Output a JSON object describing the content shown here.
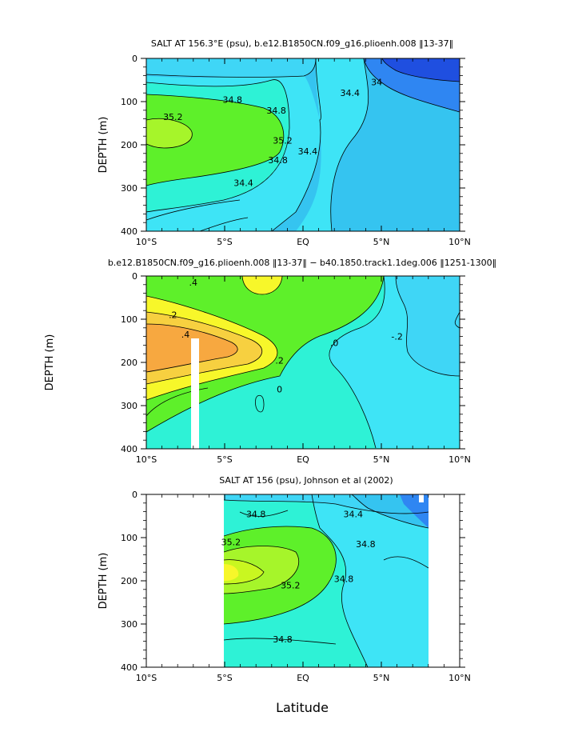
{
  "figure": {
    "xlabel": "Latitude",
    "x_ticks": [
      "10°S",
      "5°S",
      "EQ",
      "5°N",
      "10°N"
    ],
    "y_ticks": [
      "0",
      "100",
      "200",
      "300",
      "400"
    ]
  },
  "colors": {
    "blue_dark": "#1f4fe0",
    "blue_mid": "#2f86f2",
    "blue_light": "#35c4f0",
    "cyan": "#3ee4f6",
    "sky": "#3fd6f6",
    "aqua": "#2ef2d6",
    "green": "#5ef02a",
    "lime": "#a6f52a",
    "yellowgreen": "#c9f720",
    "yellow": "#f7f72a",
    "gold": "#f7d040",
    "orange": "#f7a840",
    "white": "#ffffff"
  },
  "chart_data": [
    {
      "type": "heatmap",
      "title": "SALT AT 156.3°E (psu), b.e12.B1850CN.f09_g16.plioenh.008 ‖13-37‖",
      "ylabel": "DEPTH (m)",
      "xlim": [
        -10,
        10
      ],
      "ylim": [
        400,
        0
      ],
      "contour_labels": [
        {
          "text": "34.8",
          "lat": -4.5,
          "depth": 95
        },
        {
          "text": "35.2",
          "lat": -8.3,
          "depth": 135
        },
        {
          "text": "35.2",
          "lat": -1.3,
          "depth": 190
        },
        {
          "text": "34.8",
          "lat": -1.6,
          "depth": 235
        },
        {
          "text": "34.4",
          "lat": -3.8,
          "depth": 288
        },
        {
          "text": "34.8",
          "lat": -1.7,
          "depth": 120
        },
        {
          "text": "34.4",
          "lat": 3.0,
          "depth": 80
        },
        {
          "text": "34",
          "lat": 4.7,
          "depth": 55
        },
        {
          "text": "34.4",
          "lat": 0.3,
          "depth": 215
        }
      ]
    },
    {
      "type": "heatmap",
      "title": "b.e12.B1850CN.f09_g16.plioenh.008 ‖13-37‖ − b40.1850.track1.1deg.006 ‖1251-1300‖",
      "ylabel": "DEPTH (m)",
      "xlim": [
        -10,
        10
      ],
      "ylim": [
        400,
        0
      ],
      "contour_labels": [
        {
          "text": ".4",
          "lat": -7.0,
          "depth": 15
        },
        {
          "text": ".2",
          "lat": -8.3,
          "depth": 90
        },
        {
          "text": ".4",
          "lat": -7.5,
          "depth": 135
        },
        {
          "text": ".2",
          "lat": -1.5,
          "depth": 195
        },
        {
          "text": ".0",
          "lat": 2.0,
          "depth": 155
        },
        {
          "text": "-.2",
          "lat": 6.0,
          "depth": 140
        },
        {
          "text": "0",
          "lat": -1.5,
          "depth": 262
        }
      ]
    },
    {
      "type": "heatmap",
      "title": "SALT AT 156 (psu), Johnson et al (2002)",
      "ylabel": "DEPTH (m)",
      "xlim": [
        -10,
        10
      ],
      "ylim": [
        400,
        0
      ],
      "contour_labels": [
        {
          "text": "34.8",
          "lat": -3.0,
          "depth": 45
        },
        {
          "text": "34.4",
          "lat": 3.2,
          "depth": 45
        },
        {
          "text": "35.2",
          "lat": -4.6,
          "depth": 110
        },
        {
          "text": "34.8",
          "lat": 4.0,
          "depth": 115
        },
        {
          "text": "35.2",
          "lat": -0.8,
          "depth": 210
        },
        {
          "text": "34.8",
          "lat": 2.6,
          "depth": 195
        },
        {
          "text": "34.8",
          "lat": -1.3,
          "depth": 335
        }
      ]
    }
  ]
}
